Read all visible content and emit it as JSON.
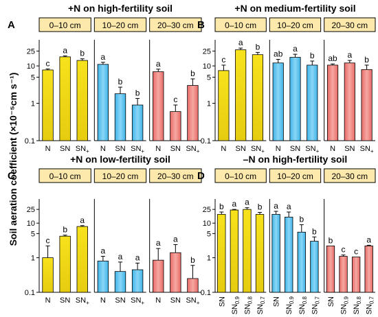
{
  "figure": {
    "ylabel": "Soil aeration coefficient (×10⁻⁵cm s⁻¹)"
  },
  "colors": {
    "yellow": "#f3dc16",
    "blue": "#5fc4ee",
    "red": "#ee8983",
    "header_fill": "#fde9ac"
  },
  "chart_data": [
    {
      "type": "bar",
      "panel_letter": "A",
      "title": "+N on high-fertility soil",
      "y_scale": "log",
      "ylim": [
        0.1,
        50
      ],
      "yticks": [
        0.1,
        1,
        5,
        10,
        25
      ],
      "groups": [
        {
          "label": "0–10 cm",
          "color": "yellow",
          "categories": [
            "N",
            "SN",
            "SN+"
          ],
          "values": [
            7.8,
            17.5,
            14.0
          ],
          "err": [
            0.5,
            1.0,
            1.5
          ],
          "letters": [
            "c",
            "a",
            "b"
          ]
        },
        {
          "label": "10–20 cm",
          "color": "blue",
          "categories": [
            "N",
            "SN",
            "SN+"
          ],
          "values": [
            11.0,
            1.8,
            0.9
          ],
          "err": [
            1.5,
            0.9,
            0.45
          ],
          "letters": [
            "a",
            "b",
            "b"
          ]
        },
        {
          "label": "20–30 cm",
          "color": "red",
          "categories": [
            "N",
            "SN",
            "SN+"
          ],
          "values": [
            7.0,
            0.6,
            3.0
          ],
          "err": [
            1.2,
            0.3,
            1.5
          ],
          "letters": [
            "a",
            "c",
            "b"
          ]
        }
      ]
    },
    {
      "type": "bar",
      "panel_letter": "B",
      "title": "+N on medium-fertility soil",
      "y_scale": "log",
      "ylim": [
        0.1,
        50
      ],
      "yticks": [
        0.1,
        1,
        5,
        10,
        25
      ],
      "groups": [
        {
          "label": "0–10 cm",
          "color": "yellow",
          "categories": [
            "N",
            "SN",
            "SN+"
          ],
          "values": [
            7.5,
            27.0,
            20.0
          ],
          "err": [
            3.0,
            3.0,
            3.0
          ],
          "letters": [
            "c",
            "a",
            "b"
          ]
        },
        {
          "label": "10–20 cm",
          "color": "blue",
          "categories": [
            "N",
            "SN",
            "SN+"
          ],
          "values": [
            12.0,
            17.0,
            10.5
          ],
          "err": [
            3.0,
            3.5,
            3.0
          ],
          "letters": [
            "ab",
            "a",
            "b"
          ]
        },
        {
          "label": "20–30 cm",
          "color": "red",
          "categories": [
            "N",
            "SN",
            "SN+"
          ],
          "values": [
            10.5,
            12.0,
            8.0
          ],
          "err": [
            0.8,
            2.0,
            2.5
          ],
          "letters": [
            "ab",
            "a",
            "b"
          ]
        }
      ]
    },
    {
      "type": "bar",
      "panel_letter": "C",
      "title": "+N on low-fertility soil",
      "y_scale": "log",
      "ylim": [
        0.1,
        50
      ],
      "yticks": [
        0.1,
        1,
        5,
        10,
        25
      ],
      "groups": [
        {
          "label": "0–10 cm",
          "color": "yellow",
          "categories": [
            "N",
            "SN",
            "SN+"
          ],
          "values": [
            1.0,
            4.2,
            8.0
          ],
          "err": [
            1.2,
            0.3,
            0.5
          ],
          "letters": [
            "c",
            "b",
            "a"
          ]
        },
        {
          "label": "10–20 cm",
          "color": "blue",
          "categories": [
            "N",
            "SN",
            "SN+"
          ],
          "values": [
            0.8,
            0.4,
            0.45
          ],
          "err": [
            0.3,
            0.35,
            0.25
          ],
          "letters": [
            "a",
            "a",
            "a"
          ]
        },
        {
          "label": "20–30 cm",
          "color": "red",
          "categories": [
            "N",
            "SN",
            "SN+"
          ],
          "values": [
            0.85,
            1.4,
            0.25
          ],
          "err": [
            1.0,
            1.0,
            0.35
          ],
          "letters": [
            "a",
            "a",
            "b"
          ]
        }
      ]
    },
    {
      "type": "bar",
      "panel_letter": "D",
      "title": "–N on high-fertility soil",
      "y_scale": "log",
      "ylim": [
        0.1,
        50
      ],
      "yticks": [
        0.1,
        1,
        5,
        10,
        25
      ],
      "groups": [
        {
          "label": "0–10 cm",
          "color": "yellow",
          "categories": [
            "SN",
            "SN0.9",
            "SN0.8",
            "SN0.7"
          ],
          "values": [
            18.0,
            24.0,
            25.0,
            18.0
          ],
          "err": [
            3.0,
            1.0,
            3.0,
            2.5
          ],
          "letters": [
            "b",
            "a",
            "a",
            "b"
          ]
        },
        {
          "label": "10–20 cm",
          "color": "blue",
          "categories": [
            "SN",
            "SN0.9",
            "SN0.8",
            "SN0.7"
          ],
          "values": [
            18.0,
            15.0,
            5.5,
            3.0
          ],
          "err": [
            4.0,
            6.0,
            3.5,
            1.0
          ],
          "letters": [
            "a",
            "a",
            "b",
            "b"
          ]
        },
        {
          "label": "20–30 cm",
          "color": "red",
          "categories": [
            "SN",
            "SN0.9",
            "SN0.8",
            "SN0.7"
          ],
          "values": [
            2.2,
            1.1,
            1.05,
            2.2
          ],
          "err": [
            0.0,
            0.1,
            0.0,
            0.1
          ],
          "letters": [
            "b",
            "c",
            "c",
            "a"
          ]
        }
      ]
    }
  ]
}
